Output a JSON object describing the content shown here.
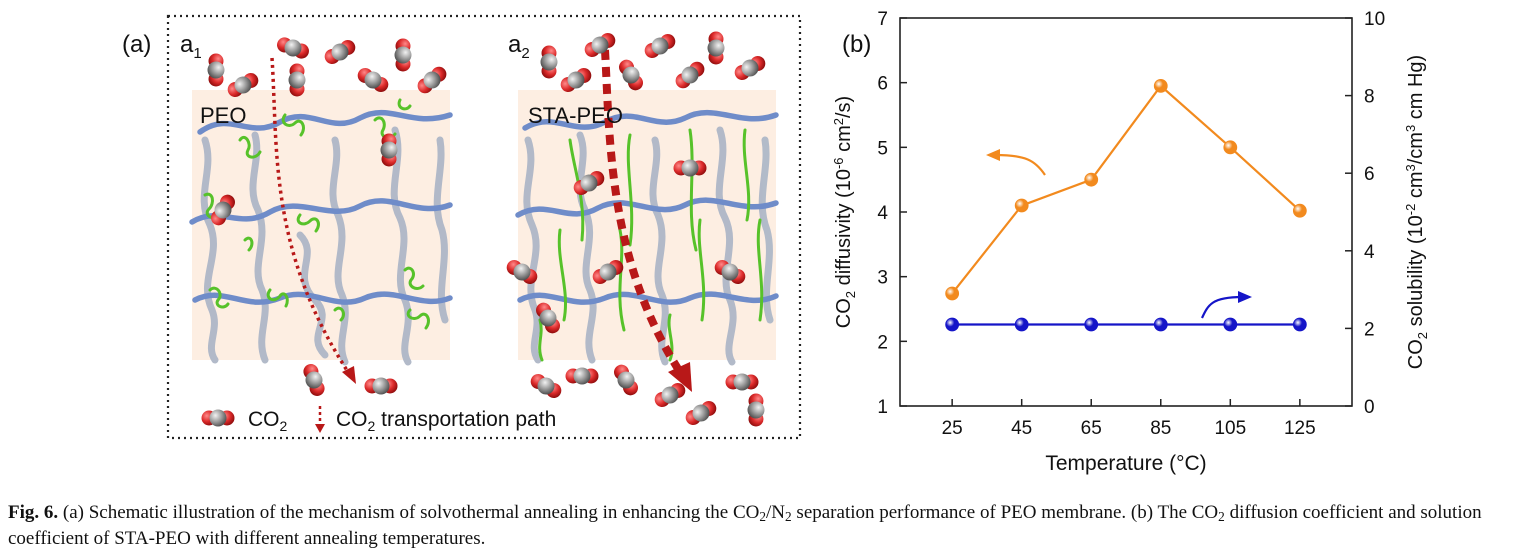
{
  "panel_a": {
    "label": "(a)",
    "sub_a1": "a",
    "sub_a1_index": "1",
    "sub_a2": "a",
    "sub_a2_index": "2",
    "membrane_1": "PEO",
    "membrane_2": "STA-PEO",
    "legend_co2_main": "CO",
    "legend_co2_sub": "2",
    "legend_path_pre": "CO",
    "legend_path_sub": "2",
    "legend_path_post": " transportation path",
    "colors": {
      "oxygen": "#d8262b",
      "carbon": "#8c8c8c",
      "chain": "#8fa2c4",
      "side_chain": "#57c22a",
      "path": "#b81818",
      "background": "#fdeee2"
    }
  },
  "panel_b": {
    "label": "(b)",
    "xlabel": "Temperature (°C)",
    "ylabel_left": {
      "pre": "CO",
      "sub": "2",
      "mid": " diffusivity (10",
      "sup": "-6",
      "mid2": " cm",
      "sup2": "2",
      "post": "/s)"
    },
    "ylabel_right": {
      "pre": "CO",
      "sub": "2",
      "mid": " solubility (10",
      "sup": "-2",
      "mid2": " cm",
      "sup2": "3",
      "mid3": "/cm",
      "sup3": "3",
      "post": " cm Hg)"
    }
  },
  "chart_data": {
    "type": "line",
    "x": [
      25,
      45,
      65,
      85,
      105,
      125
    ],
    "xlabel": "Temperature (°C)",
    "xlim": [
      10,
      140
    ],
    "left_ticks": [
      "1",
      "2",
      "3",
      "4",
      "5",
      "6",
      "7"
    ],
    "right_ticks": [
      "0",
      "2",
      "4",
      "6",
      "8",
      "10"
    ],
    "x_ticks": [
      "25",
      "45",
      "65",
      "85",
      "105",
      "125"
    ],
    "series": [
      {
        "axis": "left",
        "color": "#f28a1e",
        "values": [
          2.74,
          4.1,
          4.5,
          5.95,
          5.0,
          4.02
        ],
        "ylim": [
          1,
          7
        ]
      },
      {
        "axis": "right",
        "color": "#1515c8",
        "values": [
          2.1,
          2.1,
          2.1,
          2.1,
          2.1,
          2.1
        ],
        "ylim": [
          0,
          10
        ]
      }
    ]
  },
  "caption": {
    "fig": "Fig. 6.",
    "t1": " (a) Schematic illustration of the mechanism of solvothermal annealing in enhancing the CO",
    "s1": "2",
    "t2": "/N",
    "s2": "2",
    "t3": " separation performance of PEO membrane. (b) The CO",
    "s3": "2",
    "t4": " diffusion coefficient and solution coefficient of STA-PEO with different annealing temperatures."
  }
}
